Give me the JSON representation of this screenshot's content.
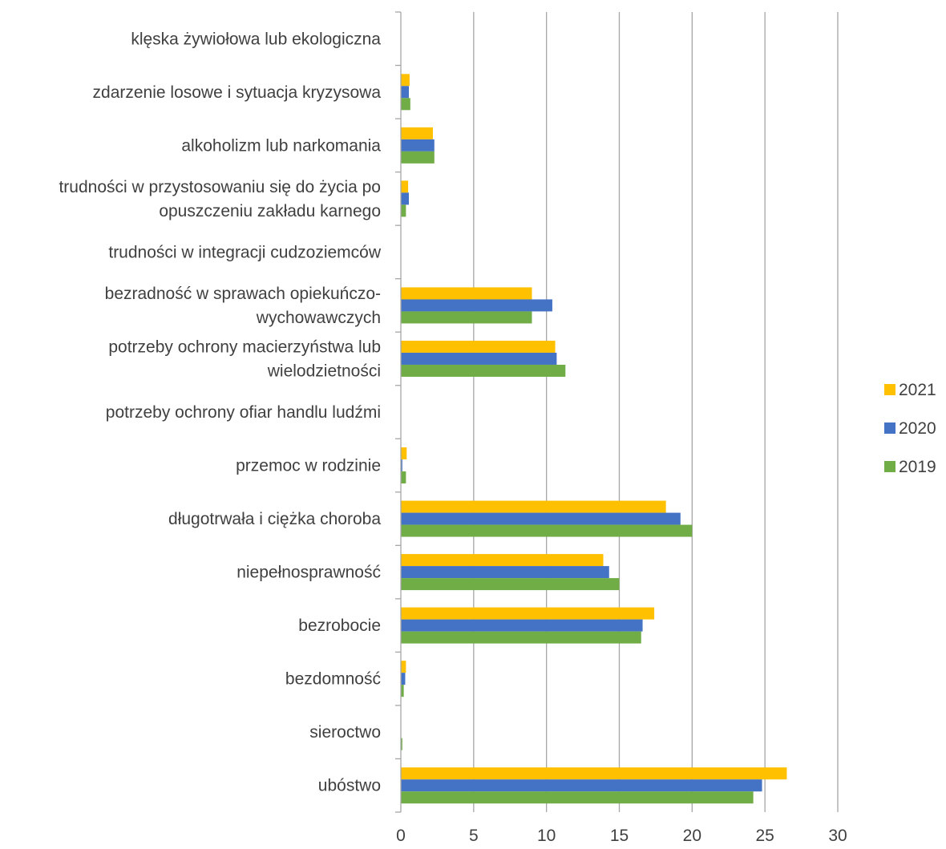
{
  "chart_data": {
    "type": "bar",
    "orientation": "horizontal",
    "title": "",
    "xlabel": "",
    "ylabel": "",
    "xlim": [
      0,
      30
    ],
    "xticks": [
      0,
      5,
      10,
      15,
      20,
      25,
      30
    ],
    "grid": "vertical",
    "legend": "right",
    "categories": [
      [
        "klęska żywiołowa lub ekologiczna"
      ],
      [
        "zdarzenie losowe i sytuacja kryzysowa"
      ],
      [
        "alkoholizm lub narkomania"
      ],
      [
        "trudności w przystosowaniu się do życia po",
        "opuszczeniu zakładu karnego"
      ],
      [
        "trudności w integracji cudzoziemców"
      ],
      [
        "bezradność w sprawach opiekuńczo-",
        "wychowawczych"
      ],
      [
        "potrzeby ochrony macierzyństwa lub",
        "wielodzietności"
      ],
      [
        "potrzeby ochrony ofiar handlu ludźmi"
      ],
      [
        "przemoc w rodzinie"
      ],
      [
        "długotrwała i ciężka choroba"
      ],
      [
        "niepełnosprawność"
      ],
      [
        "bezrobocie"
      ],
      [
        "bezdomność"
      ],
      [
        "sieroctwo"
      ],
      [
        "ubóstwo"
      ]
    ],
    "series": [
      {
        "name": "2021",
        "color": "#FFC000",
        "values": [
          0,
          0.6,
          2.2,
          0.5,
          0,
          9.0,
          10.6,
          0,
          0.4,
          18.2,
          13.9,
          17.4,
          0.35,
          0,
          26.5
        ]
      },
      {
        "name": "2020",
        "color": "#4472C4",
        "values": [
          0,
          0.55,
          2.3,
          0.55,
          0,
          10.4,
          10.7,
          0,
          0.1,
          19.2,
          14.3,
          16.6,
          0.3,
          0,
          24.8
        ]
      },
      {
        "name": "2019",
        "color": "#70AD47",
        "values": [
          0,
          0.65,
          2.3,
          0.35,
          0,
          9.0,
          11.3,
          0,
          0.35,
          20.0,
          15.0,
          16.5,
          0.2,
          0.1,
          24.2
        ]
      }
    ],
    "legend_order": [
      "2021",
      "2020",
      "2019"
    ]
  }
}
